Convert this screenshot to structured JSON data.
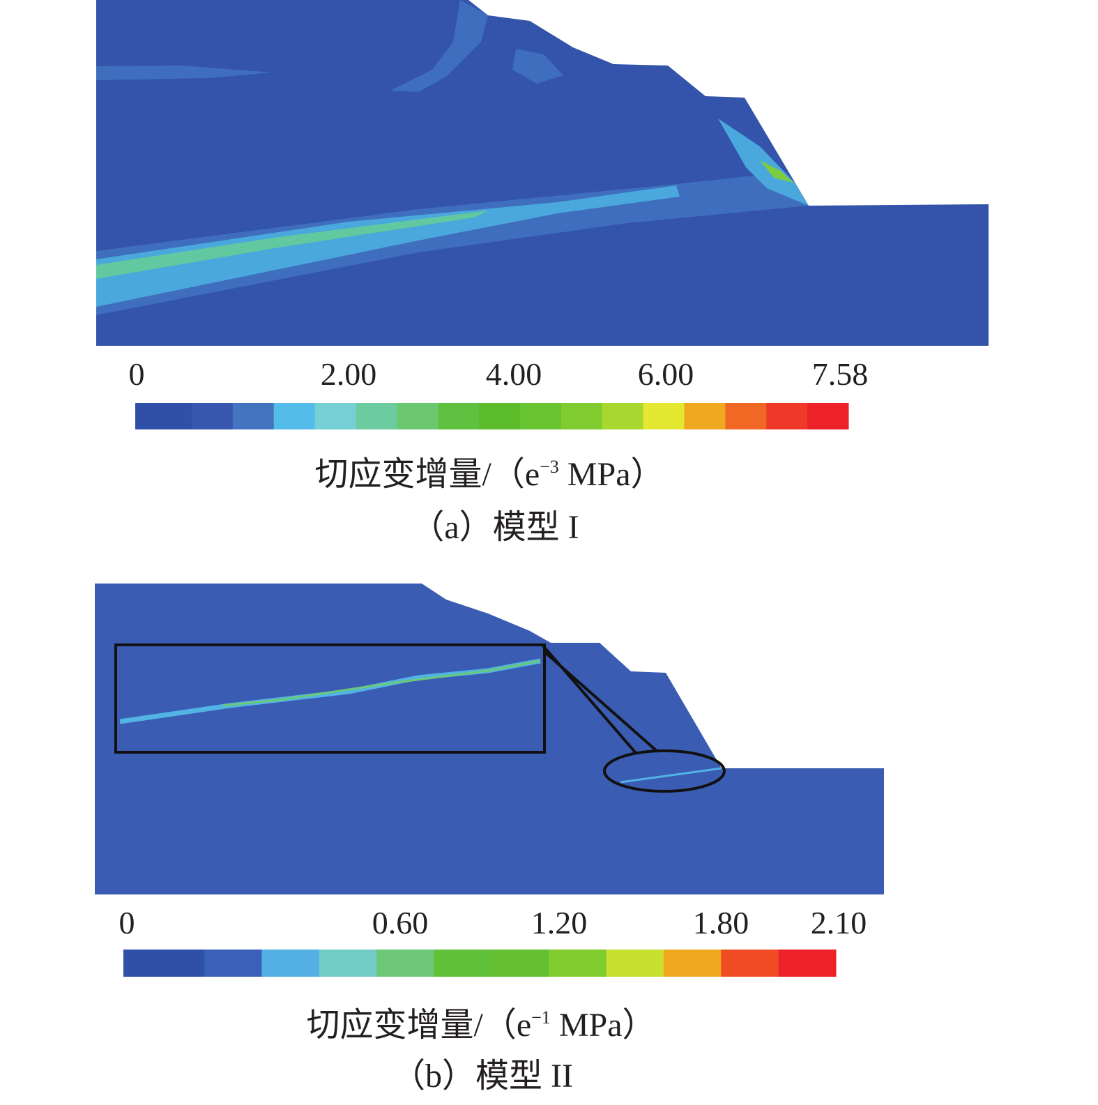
{
  "panels": [
    {
      "id": "a",
      "caption": "（a）模型 I",
      "colorbar": {
        "ticks": [
          "0",
          "2.00",
          "4.00",
          "6.00",
          "7.58"
        ],
        "label_prefix": "切应变增量/（e",
        "label_exp": "−3",
        "label_suffix": " MPa）",
        "colors": [
          "#3050a8",
          "#3858b0",
          "#4474c0",
          "#54bce8",
          "#74d0d4",
          "#6ccca0",
          "#6cc870",
          "#60c040",
          "#5cbc2c",
          "#68c430",
          "#80cc30",
          "#a8d830",
          "#e4e830",
          "#f0a820",
          "#f06824",
          "#ee3828",
          "#ec2228"
        ]
      }
    },
    {
      "id": "b",
      "caption": "（b）模型 II",
      "colorbar": {
        "ticks": [
          "0",
          "0.60",
          "1.20",
          "1.80",
          "2.10"
        ],
        "label_prefix": "切应变增量/（e",
        "label_exp": "−1",
        "label_suffix": " MPa）",
        "colors": [
          "#3050a8",
          "#3a60b8",
          "#54b0e4",
          "#70ccc4",
          "#6cc878",
          "#60c038",
          "#64c030",
          "#80cc2c",
          "#c8e030",
          "#f0a820",
          "#f04c24",
          "#ec2228"
        ]
      }
    }
  ],
  "colors": {
    "base": "#3454ac",
    "band": "#4a9ad8",
    "band_light": "#3f72c0",
    "outline": "#111111"
  }
}
